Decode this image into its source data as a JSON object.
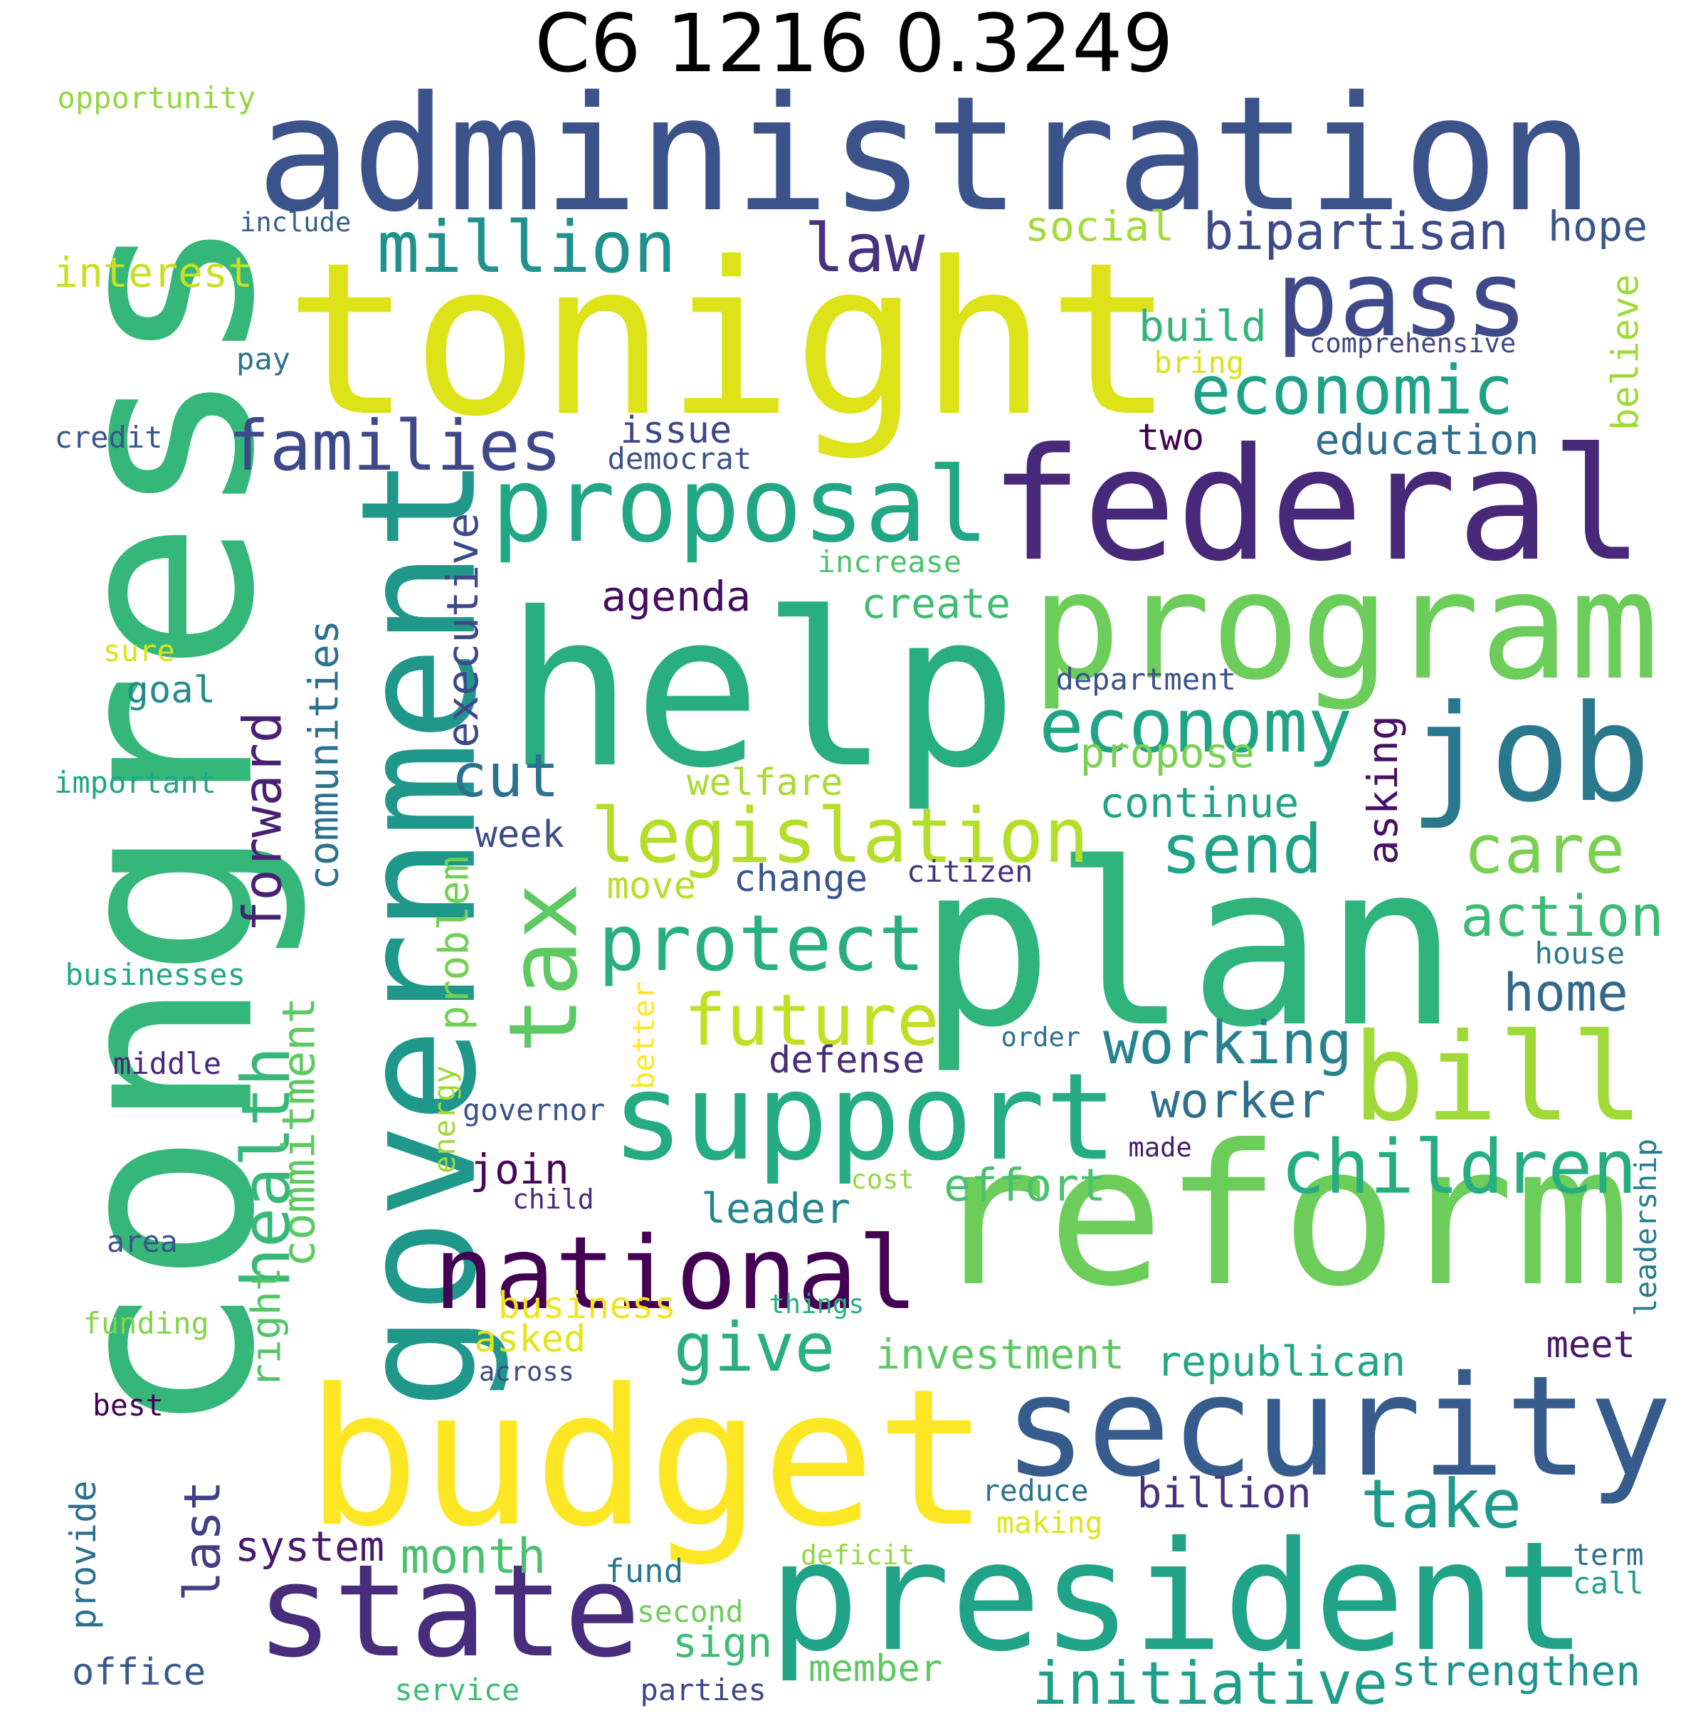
{
  "title": "C6 1216 0.3249",
  "words": [
    {
      "text": "congress",
      "color": "#35b779"
    },
    {
      "text": "administration",
      "color": "#3b528b"
    },
    {
      "text": "tonight",
      "color": "#dde318"
    },
    {
      "text": "help",
      "color": "#28ae80"
    },
    {
      "text": "plan",
      "color": "#2fb47c"
    },
    {
      "text": "budget",
      "color": "#fde725"
    },
    {
      "text": "reform",
      "color": "#6ccd5a"
    },
    {
      "text": "government",
      "color": "#1f988b"
    },
    {
      "text": "president",
      "color": "#20a386"
    },
    {
      "text": "federal",
      "color": "#482878"
    },
    {
      "text": "program",
      "color": "#6ccd5a"
    },
    {
      "text": "security",
      "color": "#365c8d"
    },
    {
      "text": "state",
      "color": "#472d7b"
    },
    {
      "text": "support",
      "color": "#25ac82"
    },
    {
      "text": "job",
      "color": "#2a788e"
    },
    {
      "text": "national",
      "color": "#440154"
    },
    {
      "text": "proposal",
      "color": "#22a785"
    },
    {
      "text": "tax",
      "color": "#5ec962"
    },
    {
      "text": "bill",
      "color": "#a0da39"
    },
    {
      "text": "pass",
      "color": "#3e4989"
    },
    {
      "text": "legislation",
      "color": "#b5de2b"
    },
    {
      "text": "protect",
      "color": "#29af7f"
    },
    {
      "text": "future",
      "color": "#c2df23"
    },
    {
      "text": "million",
      "color": "#21918c"
    },
    {
      "text": "economic",
      "color": "#1fa088"
    },
    {
      "text": "economy",
      "color": "#20a486"
    },
    {
      "text": "families",
      "color": "#3e4989"
    },
    {
      "text": "children",
      "color": "#26ad81"
    },
    {
      "text": "law",
      "color": "#46327e"
    },
    {
      "text": "last",
      "color": "#433e85"
    },
    {
      "text": "send",
      "color": "#1fa287"
    },
    {
      "text": "care",
      "color": "#7ad151"
    },
    {
      "text": "take",
      "color": "#1e9b8a"
    },
    {
      "text": "initiative",
      "color": "#1f9e89"
    },
    {
      "text": "health",
      "color": "#37b878"
    },
    {
      "text": "right",
      "color": "#52c569"
    },
    {
      "text": "forward",
      "color": "#482173"
    },
    {
      "text": "working",
      "color": "#26828e"
    },
    {
      "text": "action",
      "color": "#3bbb75"
    },
    {
      "text": "give",
      "color": "#2ab07f"
    },
    {
      "text": "cut",
      "color": "#2c728e"
    },
    {
      "text": "effort",
      "color": "#4ac16d"
    },
    {
      "text": "bipartisan",
      "color": "#3e4a89"
    },
    {
      "text": "communities",
      "color": "#2c718e"
    },
    {
      "text": "home",
      "color": "#31688e"
    },
    {
      "text": "worker",
      "color": "#2e6f8e"
    },
    {
      "text": "join",
      "color": "#450559"
    },
    {
      "text": "month",
      "color": "#4ac16d"
    },
    {
      "text": "build",
      "color": "#31b57b"
    },
    {
      "text": "hope",
      "color": "#39568c"
    },
    {
      "text": "billion",
      "color": "#46337f"
    },
    {
      "text": "system",
      "color": "#481a6c"
    },
    {
      "text": "republican",
      "color": "#22a884"
    },
    {
      "text": "investment",
      "color": "#5ec962"
    },
    {
      "text": "strengthen",
      "color": "#20928c"
    },
    {
      "text": "agenda",
      "color": "#440d5f"
    },
    {
      "text": "education",
      "color": "#2f6c8e"
    },
    {
      "text": "executive",
      "color": "#3e4989"
    },
    {
      "text": "leader",
      "color": "#25858e"
    },
    {
      "text": "propose",
      "color": "#7ad151"
    },
    {
      "text": "sign",
      "color": "#3dbc74"
    },
    {
      "text": "create",
      "color": "#40bd72"
    },
    {
      "text": "interest",
      "color": "#c8e020"
    },
    {
      "text": "social",
      "color": "#a5db36"
    },
    {
      "text": "continue",
      "color": "#20a386"
    },
    {
      "text": "commitment",
      "color": "#5ec962"
    },
    {
      "text": "issue",
      "color": "#3f4788"
    },
    {
      "text": "business",
      "color": "#f1e51d"
    },
    {
      "text": "welfare",
      "color": "#a8db34"
    },
    {
      "text": "defense",
      "color": "#472c7a"
    },
    {
      "text": "office",
      "color": "#38598c"
    },
    {
      "text": "change",
      "color": "#3a548c"
    },
    {
      "text": "two",
      "color": "#440154"
    },
    {
      "text": "goal",
      "color": "#228b8d"
    },
    {
      "text": "week",
      "color": "#3d4d8a"
    },
    {
      "text": "meet",
      "color": "#48186a"
    },
    {
      "text": "asked",
      "color": "#e5e419"
    },
    {
      "text": "member",
      "color": "#5ec962"
    },
    {
      "text": "move",
      "color": "#b8de29"
    },
    {
      "text": "problem",
      "color": "#73d056"
    },
    {
      "text": "asking",
      "color": "#471063"
    },
    {
      "text": "believe",
      "color": "#a0da39"
    },
    {
      "text": "fund",
      "color": "#2a788e"
    },
    {
      "text": "provide",
      "color": "#2d708e"
    },
    {
      "text": "opportunity",
      "color": "#93d741"
    },
    {
      "text": "increase",
      "color": "#4ec36b"
    },
    {
      "text": "comprehensive",
      "color": "#3f4788"
    },
    {
      "text": "house",
      "color": "#2a788e"
    },
    {
      "text": "department",
      "color": "#3b528b"
    },
    {
      "text": "bring",
      "color": "#d8e219"
    },
    {
      "text": "democrat",
      "color": "#3b528b"
    },
    {
      "text": "include",
      "color": "#355f8d"
    },
    {
      "text": "pay",
      "color": "#2c728e"
    },
    {
      "text": "credit",
      "color": "#39568c"
    },
    {
      "text": "important",
      "color": "#21a685"
    },
    {
      "text": "sure",
      "color": "#dde318"
    },
    {
      "text": "citizen",
      "color": "#46337f"
    },
    {
      "text": "businesses",
      "color": "#22a785"
    },
    {
      "text": "order",
      "color": "#2c718e"
    },
    {
      "text": "middle",
      "color": "#482878"
    },
    {
      "text": "better",
      "color": "#fde725"
    },
    {
      "text": "governor",
      "color": "#3b528b"
    },
    {
      "text": "energy",
      "color": "#a0da39"
    },
    {
      "text": "made",
      "color": "#481b6d"
    },
    {
      "text": "cost",
      "color": "#95d840"
    },
    {
      "text": "child",
      "color": "#472a7a"
    },
    {
      "text": "leadership",
      "color": "#287d8e"
    },
    {
      "text": "area",
      "color": "#3b528b"
    },
    {
      "text": "things",
      "color": "#29af7f"
    },
    {
      "text": "funding",
      "color": "#84d44b"
    },
    {
      "text": "across",
      "color": "#3e4989"
    },
    {
      "text": "best",
      "color": "#440154"
    },
    {
      "text": "reduce",
      "color": "#2c728e"
    },
    {
      "text": "making",
      "color": "#e2e418"
    },
    {
      "text": "deficit",
      "color": "#93d741"
    },
    {
      "text": "term",
      "color": "#2d708e"
    },
    {
      "text": "call",
      "color": "#1f9e89"
    },
    {
      "text": "second",
      "color": "#6ece58"
    },
    {
      "text": "service",
      "color": "#3bbb75"
    },
    {
      "text": "parties",
      "color": "#3f4788"
    }
  ]
}
